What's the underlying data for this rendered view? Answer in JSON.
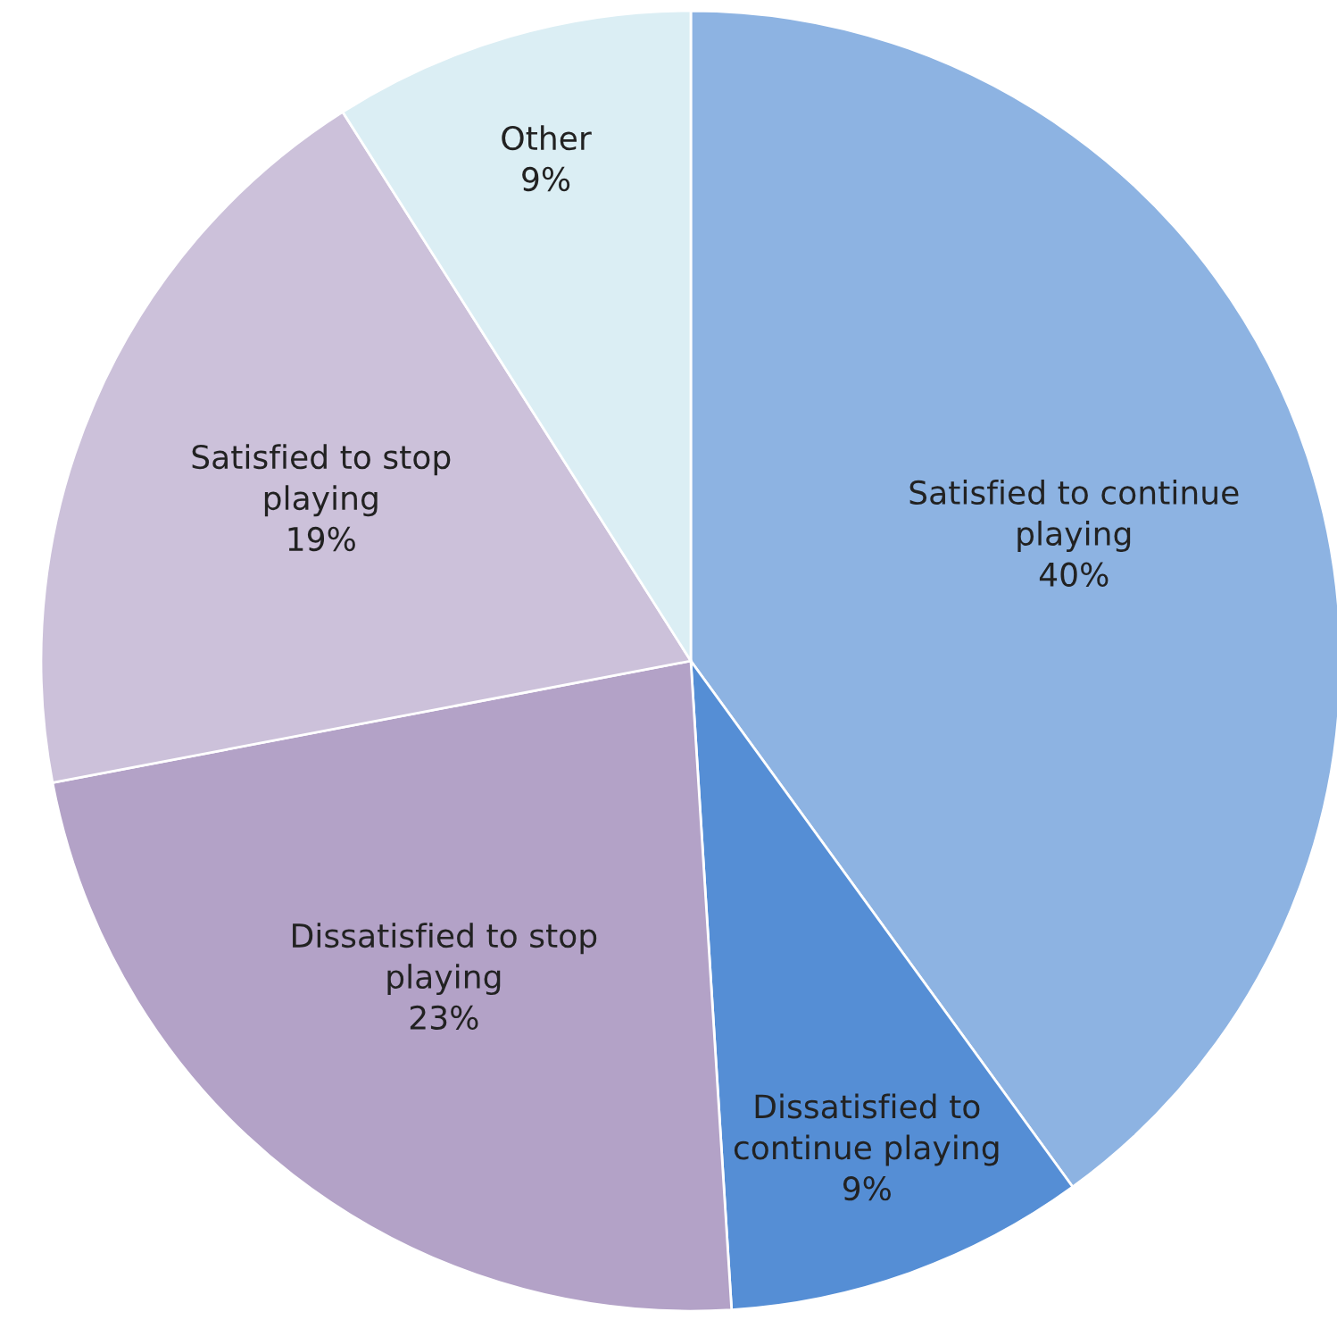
{
  "chart_data": {
    "type": "pie",
    "categories": [
      "Satisfied to continue\nplaying",
      "Dissatisfied to\ncontinue playing",
      "Dissatisfied to stop\nplaying",
      "Satisfied to stop\nplaying",
      "Other"
    ],
    "values": [
      40,
      9,
      23,
      19,
      9
    ],
    "colors": [
      "#8db3e2",
      "#558ed5",
      "#b3a2c7",
      "#ccc1da",
      "#dbeef4"
    ],
    "value_labels": [
      "40%",
      "9%",
      "23%",
      "19%",
      "9%"
    ],
    "legend": false
  }
}
